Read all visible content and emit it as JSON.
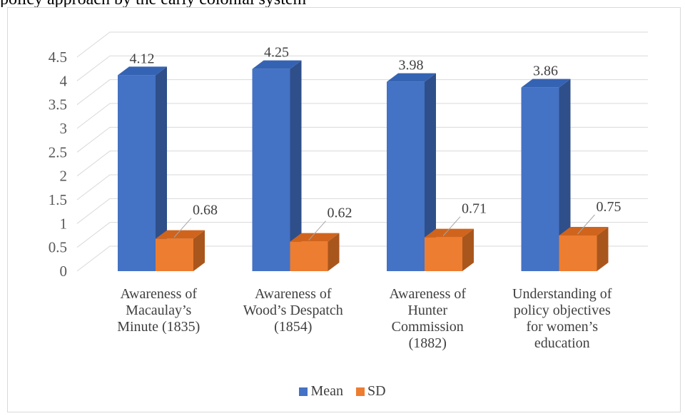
{
  "page": {
    "top_text": "policy approach by the early colonial system"
  },
  "chart_data": {
    "type": "bar",
    "title": "",
    "xlabel": "",
    "ylabel": "",
    "ylim": [
      0,
      4.5
    ],
    "yticks": [
      "0",
      "0.5",
      "1",
      "1.5",
      "2",
      "2.5",
      "3",
      "3.5",
      "4",
      "4.5"
    ],
    "grid": true,
    "legend_position": "bottom",
    "categories": [
      [
        "Awareness of",
        "Macaulay’s",
        "Minute (1835)"
      ],
      [
        "Awareness of",
        "Wood’s Despatch",
        "(1854)"
      ],
      [
        "Awareness of",
        "Hunter",
        "Commission",
        "(1882)"
      ],
      [
        "Understanding of",
        "policy objectives",
        "for women’s",
        "education"
      ]
    ],
    "series": [
      {
        "name": "Mean",
        "values": [
          4.12,
          4.25,
          3.98,
          3.86
        ],
        "labels": [
          "4.12",
          "4.25",
          "3.98",
          "3.86"
        ],
        "color": "#4472c4",
        "side_color": "#2f4f8a",
        "top_color": "#3563b4"
      },
      {
        "name": "SD",
        "values": [
          0.68,
          0.62,
          0.71,
          0.75
        ],
        "labels": [
          "0.68",
          "0.62",
          "0.71",
          "0.75"
        ],
        "color": "#ed7d31",
        "side_color": "#a9561d",
        "top_color": "#d0641c"
      }
    ]
  }
}
